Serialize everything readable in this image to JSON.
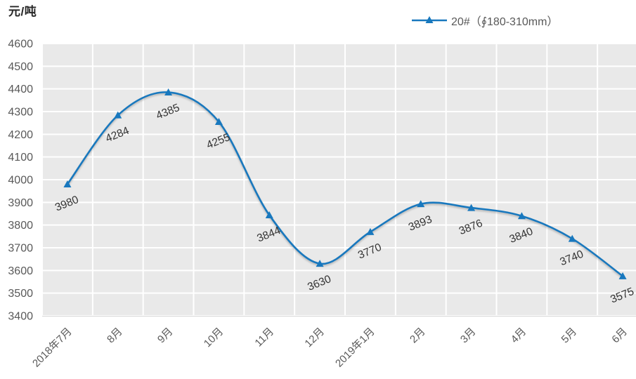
{
  "title": "元/吨",
  "legend": {
    "series_label": "20#（∮180-310mm）"
  },
  "chart_data": {
    "type": "line",
    "title": "",
    "xlabel": "",
    "ylabel": "元/吨",
    "categories": [
      "2018年7月",
      "8月",
      "9月",
      "10月",
      "11月",
      "12月",
      "2019年1月",
      "2月",
      "3月",
      "4月",
      "5月",
      "6月"
    ],
    "series": [
      {
        "name": "20#（∮180-310mm）",
        "values": [
          3980,
          4284,
          4385,
          4255,
          3844,
          3630,
          3770,
          3893,
          3876,
          3840,
          3740,
          3575
        ]
      }
    ],
    "ylim": [
      3400,
      4600
    ],
    "ytick_step": 100,
    "grid": true,
    "smooth": true,
    "marker": "triangle-up",
    "legend_position": "top-right",
    "data_labels": true,
    "colors": {
      "line": "#1878BE",
      "plot_bg": "#E9E9E9",
      "grid": "#FFFFFF",
      "axis_line": "#D6D6D6",
      "tick_text": "#595959",
      "data_label_text": "#333333",
      "title_text": "#262626"
    }
  }
}
